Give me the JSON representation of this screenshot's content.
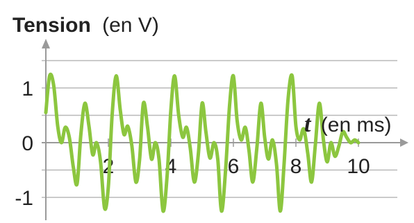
{
  "chart_data": {
    "type": "line",
    "ylabel_bold": "Tension",
    "ylabel_rest": "(en V)",
    "xlabel_var": "t",
    "xlabel_rest": "(en ms)",
    "x_ticks": [
      "2",
      "4",
      "6",
      "8",
      "10"
    ],
    "y_ticks": [
      "1",
      "0",
      "-1"
    ],
    "xlim": [
      0,
      10
    ],
    "ylim": [
      -1.3,
      1.3
    ],
    "grid": "horizontal",
    "series": [
      {
        "color": "#8cc63f",
        "x": [
          0.0,
          0.12,
          0.25,
          0.38,
          0.5,
          0.62,
          0.75,
          0.88,
          1.0,
          1.12,
          1.25,
          1.38,
          1.5,
          1.62,
          1.75,
          1.88,
          2.0,
          2.12,
          2.25,
          2.38,
          2.5,
          2.62,
          2.75,
          2.88,
          3.0,
          3.12,
          3.25,
          3.38,
          3.5,
          3.62,
          3.75,
          3.88,
          4.0,
          4.12,
          4.25,
          4.38,
          4.5,
          4.62,
          4.75,
          4.88,
          5.0,
          5.12,
          5.25,
          5.38,
          5.5,
          5.62,
          5.75,
          5.88,
          6.0,
          6.12,
          6.25,
          6.38,
          6.5,
          6.62,
          6.75,
          6.88,
          7.0,
          7.12,
          7.25,
          7.38,
          7.5,
          7.62,
          7.75,
          7.88,
          8.0,
          8.12,
          8.25,
          8.38,
          8.5,
          8.62,
          8.75,
          8.88,
          9.0,
          9.12,
          9.25,
          9.38,
          9.5,
          9.62,
          9.75,
          9.88,
          10.0
        ],
        "y": [
          0.55,
          1.22,
          1.05,
          0.3,
          0.0,
          0.28,
          0.1,
          -0.45,
          -0.75,
          0.15,
          0.72,
          0.3,
          -0.22,
          0.0,
          -0.35,
          -1.2,
          -0.8,
          0.5,
          1.22,
          0.6,
          0.15,
          0.3,
          -0.05,
          -0.72,
          -0.3,
          0.72,
          0.3,
          -0.3,
          0.0,
          -0.3,
          -1.25,
          -0.6,
          0.6,
          1.22,
          0.5,
          0.1,
          0.28,
          -0.1,
          -0.72,
          -0.2,
          0.72,
          0.2,
          -0.28,
          0.0,
          -0.3,
          -1.25,
          -0.5,
          0.7,
          1.22,
          0.4,
          0.05,
          0.28,
          -0.15,
          -0.72,
          -0.1,
          0.72,
          0.1,
          -0.3,
          0.05,
          -0.4,
          -1.25,
          -0.4,
          0.8,
          1.22,
          0.3,
          0.05,
          0.25,
          -0.2,
          -0.72,
          -0.05,
          0.72,
          0.05,
          -0.35,
          0.0,
          -0.25,
          -0.05,
          0.2,
          0.1,
          0.0,
          0.05,
          0.0
        ]
      }
    ]
  }
}
